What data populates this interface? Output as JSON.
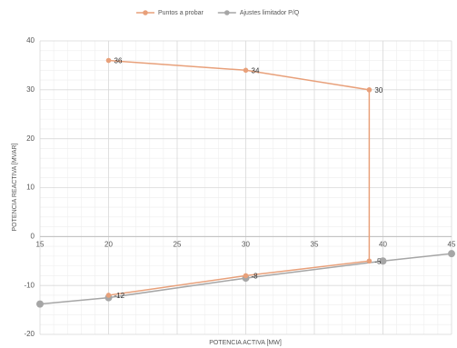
{
  "chart_data": {
    "type": "scatter",
    "xlabel": "POTENCIA ACTIVA [MW]",
    "ylabel": "POTENCIA REACTIVA [MVAR]",
    "series": [
      {
        "name": "Puntos a probar",
        "color": "#e8a07a",
        "x": [
          20,
          30,
          39,
          39,
          30,
          20
        ],
        "values": [
          36,
          34,
          30,
          -5,
          -8,
          -12
        ]
      },
      {
        "name": "Ajustes limitador P/Q",
        "color": "#a6a6a6",
        "x": [
          15,
          20,
          30,
          40,
          45
        ],
        "values": [
          -13.8,
          -12.5,
          -8.5,
          -5,
          -3.5
        ]
      }
    ],
    "data_labels_series": 0,
    "xlim": [
      15,
      45
    ],
    "xticks": [
      15,
      20,
      25,
      30,
      35,
      40,
      45
    ],
    "ylim": [
      -20,
      40
    ],
    "yticks": [
      -20,
      -10,
      0,
      10,
      20,
      30,
      40
    ],
    "grid": true,
    "legend": "top"
  }
}
